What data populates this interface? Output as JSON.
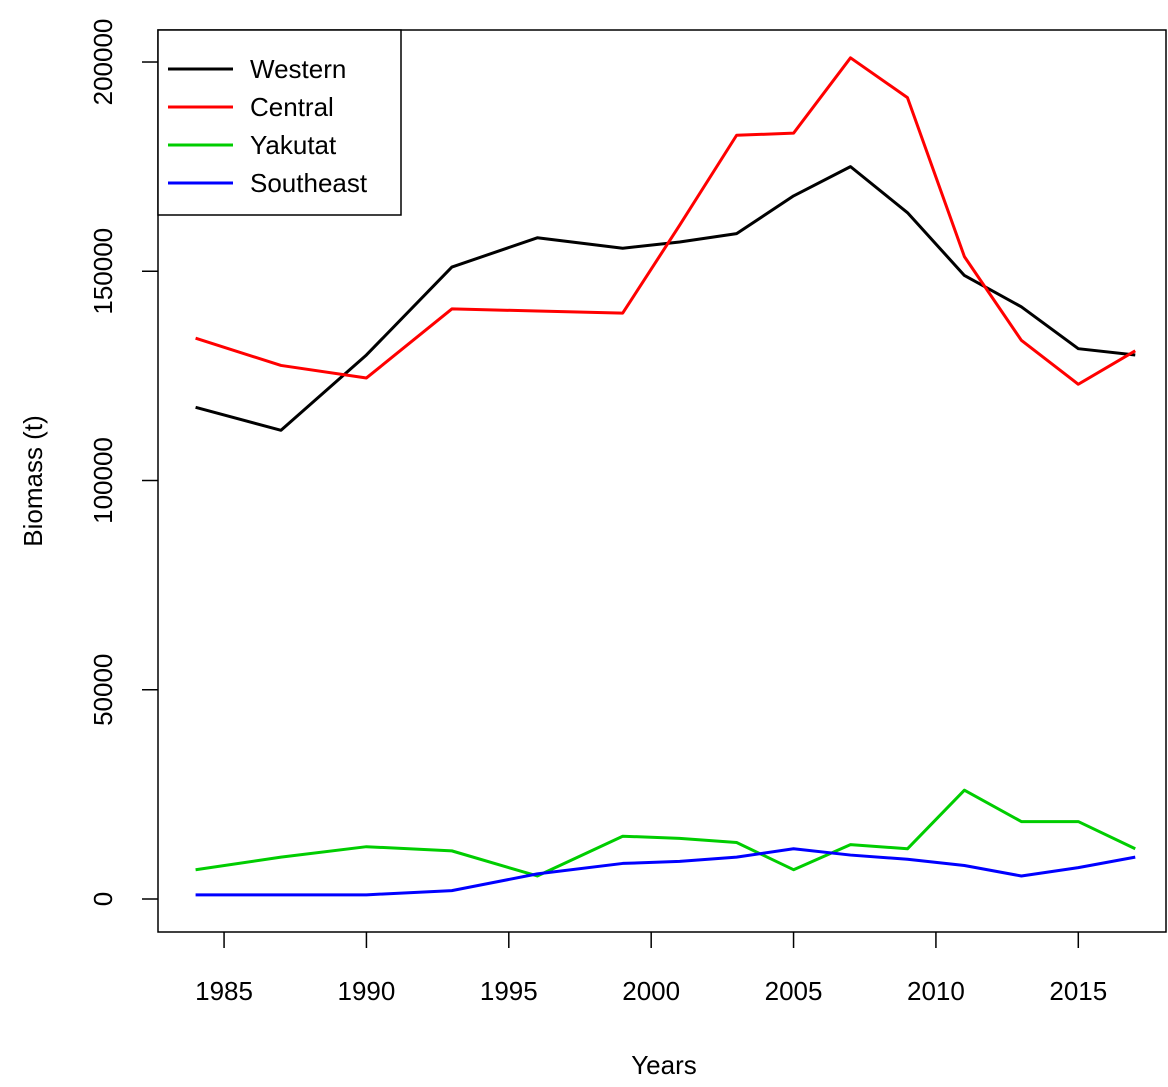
{
  "chart_data": {
    "type": "line",
    "x": [
      1984,
      1987,
      1990,
      1993,
      1996,
      1999,
      2001,
      2003,
      2005,
      2007,
      2009,
      2011,
      2013,
      2015,
      2017
    ],
    "series": [
      {
        "name": "Western",
        "color": "#000000",
        "values": [
          117500,
          112000,
          130000,
          151000,
          158000,
          155500,
          157000,
          159000,
          168000,
          175000,
          164000,
          149000,
          141500,
          131500,
          130000
        ]
      },
      {
        "name": "Central",
        "color": "#ff0000",
        "values": [
          134000,
          127500,
          124500,
          141000,
          140500,
          140000,
          161000,
          182500,
          183000,
          201000,
          191500,
          153500,
          133500,
          123000,
          131000
        ]
      },
      {
        "name": "Yakutat",
        "color": "#00cd00",
        "values": [
          7000,
          10000,
          12500,
          11500,
          5500,
          15000,
          14500,
          13500,
          7000,
          13000,
          12000,
          26000,
          18500,
          18500,
          12000
        ]
      },
      {
        "name": "Southeast",
        "color": "#0000ff",
        "values": [
          1000,
          1000,
          1000,
          2000,
          6000,
          8500,
          9000,
          10000,
          12000,
          10500,
          9500,
          8000,
          5500,
          7500,
          10000
        ]
      }
    ],
    "x_label": "Years",
    "y_label": "Biomass (t)",
    "xlim": [
      1982.68,
      2018.08
    ],
    "xticks": [
      1985,
      1990,
      1995,
      2000,
      2005,
      2010,
      2015
    ],
    "ylim": [
      -7885,
      207650
    ],
    "yticks": [
      0,
      50000,
      100000,
      150000,
      200000
    ],
    "legend": "top-left"
  }
}
